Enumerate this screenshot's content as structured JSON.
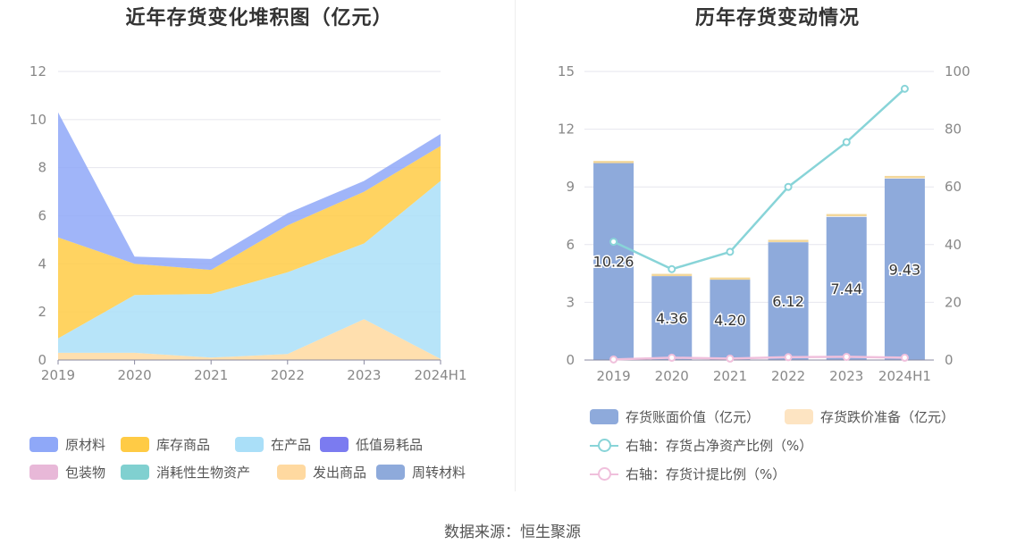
{
  "source_text": "数据来源：恒生聚源",
  "chart_data": [
    {
      "type": "area",
      "stacked": true,
      "title": "近年存货变化堆积图（亿元）",
      "categories": [
        "2019",
        "2020",
        "2021",
        "2022",
        "2023",
        "2024H1"
      ],
      "ylim": [
        0,
        12
      ],
      "yticks": [
        0,
        2,
        4,
        6,
        8,
        10,
        12
      ],
      "grid": true,
      "legend_position": "bottom",
      "series": [
        {
          "name": "原材料",
          "color": "#8fa8f8",
          "values": [
            5.2,
            0.3,
            0.45,
            0.5,
            0.45,
            0.5
          ]
        },
        {
          "name": "库存商品",
          "color": "#ffcb45",
          "values": [
            4.2,
            1.3,
            1.0,
            1.95,
            2.15,
            1.45
          ]
        },
        {
          "name": "在产品",
          "color": "#aadff8",
          "values": [
            0.6,
            2.4,
            2.65,
            3.4,
            3.15,
            7.4
          ]
        },
        {
          "name": "低值易耗品",
          "color": "#7b7bf0",
          "values": [
            0,
            0,
            0,
            0,
            0,
            0
          ]
        },
        {
          "name": "包装物",
          "color": "#e8b8d8",
          "values": [
            0,
            0,
            0,
            0,
            0,
            0
          ]
        },
        {
          "name": "消耗性生物资产",
          "color": "#80d0d0",
          "values": [
            0,
            0,
            0,
            0,
            0,
            0
          ]
        },
        {
          "name": "发出商品",
          "color": "#ffd9a0",
          "values": [
            0.3,
            0.3,
            0.1,
            0.25,
            1.7,
            0.05
          ]
        },
        {
          "name": "周转材料",
          "color": "#8eaadb",
          "values": [
            0,
            0,
            0,
            0,
            0,
            0
          ]
        }
      ]
    },
    {
      "type": "bar",
      "title": "历年存货变动情况",
      "categories": [
        "2019",
        "2020",
        "2021",
        "2022",
        "2023",
        "2024H1"
      ],
      "ylim": [
        0,
        15
      ],
      "yticks": [
        0,
        3,
        6,
        9,
        12,
        15
      ],
      "y2lim": [
        0,
        100
      ],
      "y2ticks": [
        0,
        20,
        40,
        60,
        80,
        100
      ],
      "grid": true,
      "legend_position": "bottom",
      "series": [
        {
          "name": "存货账面价值（亿元）",
          "kind": "bar",
          "color": "#8eaadb",
          "values": [
            10.26,
            4.36,
            4.2,
            6.12,
            7.44,
            9.43
          ],
          "labels": [
            "10.26",
            "4.36",
            "4.20",
            "6.12",
            "7.44",
            "9.43"
          ]
        },
        {
          "name": "存货跌价准备（亿元）",
          "kind": "bar",
          "color": "#fde4c2",
          "values": [
            0.02,
            0.05,
            0.02,
            0.06,
            0.08,
            0.07
          ]
        },
        {
          "name": "右轴：存货占净资产比例（%）",
          "kind": "line",
          "axis": "right",
          "color": "#88d4d8",
          "values": [
            41,
            31.5,
            37.5,
            60,
            75.5,
            94
          ]
        },
        {
          "name": "右轴：存货计提比例（%）",
          "kind": "line",
          "axis": "right",
          "color": "#f0c0dc",
          "values": [
            0.2,
            0.8,
            0.5,
            1.0,
            1.1,
            0.8
          ]
        }
      ]
    }
  ]
}
